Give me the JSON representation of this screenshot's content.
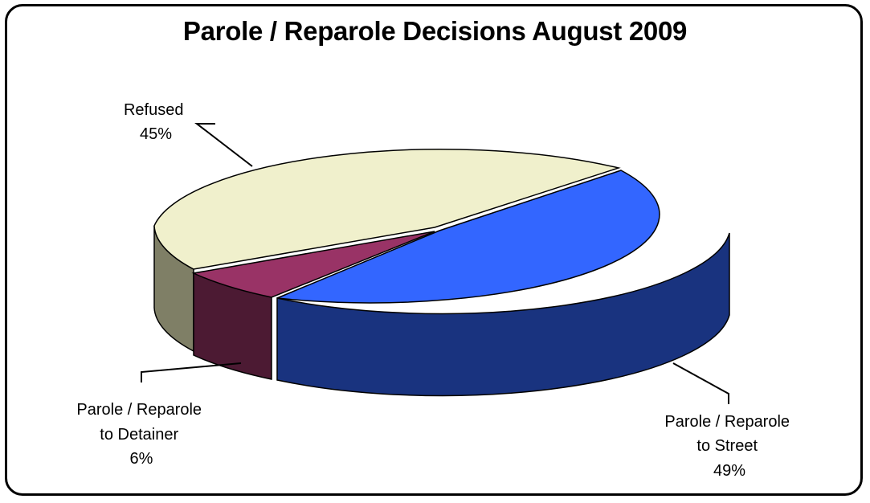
{
  "chart_data": {
    "type": "pie",
    "title": "Parole / Reparole Decisions August 2009",
    "three_d": true,
    "exploded": true,
    "slices": [
      {
        "label_lines": [
          "Parole / Reparole",
          "to Street"
        ],
        "percent_label": "49%",
        "value": 49,
        "color": "#3366FF"
      },
      {
        "label_lines": [
          "Parole / Reparole",
          "to Detainer"
        ],
        "percent_label": "6%",
        "value": 6,
        "color": "#993366"
      },
      {
        "label_lines": [
          "Refused"
        ],
        "percent_label": "45%",
        "value": 45,
        "color": "#F0F0CC"
      }
    ]
  }
}
